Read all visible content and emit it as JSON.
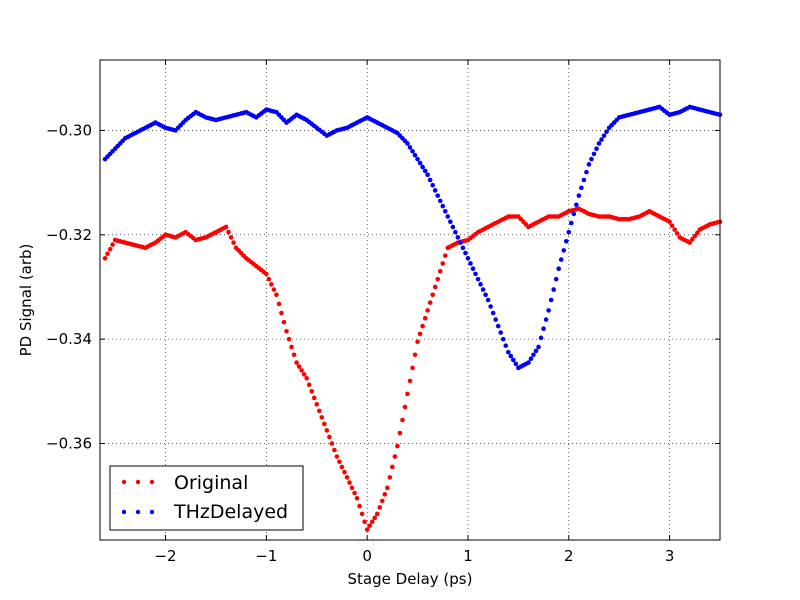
{
  "chart_data": {
    "type": "scatter",
    "xlabel": "Stage Delay (ps)",
    "ylabel": "PD Signal (arb)",
    "xlim": [
      -2.65,
      3.5
    ],
    "ylim": [
      -0.3785,
      -0.2865
    ],
    "xticks": [
      -2,
      -1,
      0,
      1,
      2,
      3
    ],
    "xtick_labels": [
      "−2",
      "−1",
      "0",
      "1",
      "2",
      "3"
    ],
    "yticks": [
      -0.3,
      -0.32,
      -0.34,
      -0.36
    ],
    "ytick_labels": [
      "−0.30",
      "−0.32",
      "−0.34",
      "−0.36"
    ],
    "grid": true,
    "legend_position": "lower-left",
    "series": [
      {
        "name": "Original",
        "color": "#ff0000",
        "x": [
          -2.6,
          -2.5,
          -2.4,
          -2.3,
          -2.2,
          -2.1,
          -2.0,
          -1.9,
          -1.8,
          -1.7,
          -1.6,
          -1.5,
          -1.4,
          -1.3,
          -1.2,
          -1.1,
          -1.0,
          -0.9,
          -0.8,
          -0.7,
          -0.6,
          -0.5,
          -0.4,
          -0.3,
          -0.2,
          -0.1,
          0.0,
          0.1,
          0.2,
          0.3,
          0.4,
          0.5,
          0.6,
          0.7,
          0.8,
          0.9,
          1.0,
          1.1,
          1.2,
          1.3,
          1.4,
          1.5,
          1.6,
          1.7,
          1.8,
          1.9,
          2.0,
          2.1,
          2.2,
          2.3,
          2.4,
          2.5,
          2.6,
          2.7,
          2.8,
          2.9,
          3.0,
          3.1,
          3.2,
          3.3,
          3.4,
          3.5
        ],
        "y": [
          -0.3245,
          -0.321,
          -0.3215,
          -0.322,
          -0.3225,
          -0.3215,
          -0.32,
          -0.3205,
          -0.3195,
          -0.321,
          -0.3205,
          -0.3195,
          -0.3185,
          -0.3225,
          -0.3245,
          -0.326,
          -0.3275,
          -0.3315,
          -0.3385,
          -0.3445,
          -0.3475,
          -0.3525,
          -0.3575,
          -0.3625,
          -0.3665,
          -0.3705,
          -0.3765,
          -0.3735,
          -0.3685,
          -0.3605,
          -0.3505,
          -0.3405,
          -0.3345,
          -0.3285,
          -0.3225,
          -0.3215,
          -0.321,
          -0.3195,
          -0.3185,
          -0.3175,
          -0.3165,
          -0.3165,
          -0.3185,
          -0.3175,
          -0.3165,
          -0.3165,
          -0.3155,
          -0.315,
          -0.316,
          -0.3165,
          -0.3165,
          -0.317,
          -0.317,
          -0.3165,
          -0.3155,
          -0.3165,
          -0.3175,
          -0.3205,
          -0.3215,
          -0.319,
          -0.318,
          -0.3175
        ]
      },
      {
        "name": "THzDelayed",
        "color": "#0000ff",
        "x": [
          -2.6,
          -2.5,
          -2.4,
          -2.3,
          -2.2,
          -2.1,
          -2.0,
          -1.9,
          -1.8,
          -1.7,
          -1.6,
          -1.5,
          -1.4,
          -1.3,
          -1.2,
          -1.1,
          -1.0,
          -0.9,
          -0.8,
          -0.7,
          -0.6,
          -0.5,
          -0.4,
          -0.3,
          -0.2,
          -0.1,
          0.0,
          0.1,
          0.2,
          0.3,
          0.4,
          0.5,
          0.6,
          0.7,
          0.8,
          0.9,
          1.0,
          1.1,
          1.2,
          1.3,
          1.4,
          1.5,
          1.6,
          1.7,
          1.8,
          1.9,
          2.0,
          2.1,
          2.2,
          2.3,
          2.4,
          2.5,
          2.6,
          2.7,
          2.8,
          2.9,
          3.0,
          3.1,
          3.2,
          3.3,
          3.4,
          3.5
        ],
        "y": [
          -0.3055,
          -0.3035,
          -0.3015,
          -0.3005,
          -0.2995,
          -0.2985,
          -0.2995,
          -0.3,
          -0.298,
          -0.2965,
          -0.2975,
          -0.298,
          -0.2975,
          -0.297,
          -0.2965,
          -0.2975,
          -0.296,
          -0.2965,
          -0.2985,
          -0.297,
          -0.298,
          -0.2995,
          -0.301,
          -0.3,
          -0.2995,
          -0.2985,
          -0.2975,
          -0.2985,
          -0.2995,
          -0.3005,
          -0.3025,
          -0.3055,
          -0.3085,
          -0.3125,
          -0.3165,
          -0.3205,
          -0.3245,
          -0.3285,
          -0.3325,
          -0.3375,
          -0.3425,
          -0.3455,
          -0.3445,
          -0.3415,
          -0.3345,
          -0.3265,
          -0.3195,
          -0.3125,
          -0.3065,
          -0.3025,
          -0.2995,
          -0.2975,
          -0.297,
          -0.2965,
          -0.296,
          -0.2955,
          -0.297,
          -0.2965,
          -0.2955,
          -0.296,
          -0.2965,
          -0.297
        ]
      }
    ]
  }
}
